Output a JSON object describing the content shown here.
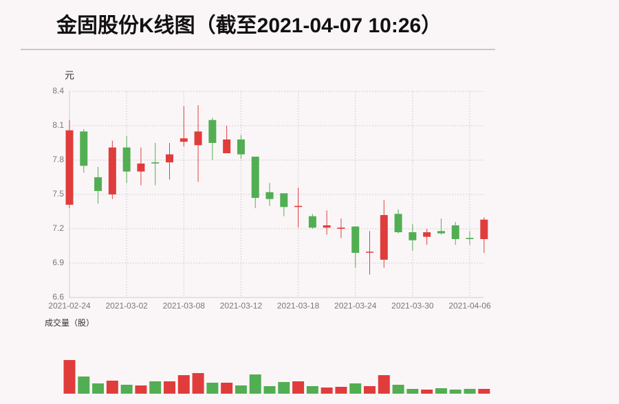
{
  "chart_data": [
    {
      "type": "candlestick",
      "title": "金固股份K线图（截至2021-04-07 10:26）",
      "y_label": "元",
      "categories": [
        "2021-02-24",
        null,
        null,
        null,
        "2021-03-02",
        null,
        null,
        null,
        "2021-03-08",
        null,
        null,
        null,
        "2021-03-12",
        null,
        null,
        null,
        "2021-03-18",
        null,
        null,
        null,
        "2021-03-24",
        null,
        null,
        null,
        "2021-03-30",
        null,
        null,
        null,
        "2021-04-06",
        null
      ],
      "open": [
        7.41,
        8.05,
        7.65,
        7.5,
        7.91,
        7.7,
        7.78,
        7.78,
        7.96,
        7.93,
        8.15,
        7.86,
        7.98,
        7.83,
        7.52,
        7.51,
        7.39,
        7.31,
        7.21,
        7.2,
        7.22,
        7.0,
        6.93,
        7.33,
        7.17,
        7.13,
        7.18,
        7.23,
        7.12,
        7.11
      ],
      "close": [
        8.06,
        7.75,
        7.53,
        7.91,
        7.7,
        7.77,
        7.77,
        7.85,
        7.99,
        8.05,
        7.95,
        7.98,
        7.85,
        7.47,
        7.46,
        7.39,
        7.4,
        7.21,
        7.23,
        7.21,
        6.99,
        7.0,
        7.32,
        7.17,
        7.1,
        7.17,
        7.16,
        7.11,
        7.11,
        7.28
      ],
      "high": [
        8.15,
        8.07,
        7.74,
        7.97,
        8.01,
        7.91,
        7.95,
        7.95,
        8.27,
        8.28,
        8.17,
        8.1,
        8.02,
        7.83,
        7.6,
        7.51,
        7.56,
        7.33,
        7.36,
        7.29,
        7.22,
        7.18,
        7.45,
        7.37,
        7.24,
        7.2,
        7.29,
        7.26,
        7.18,
        7.3
      ],
      "low": [
        7.38,
        7.69,
        7.42,
        7.46,
        7.6,
        7.58,
        7.58,
        7.63,
        7.92,
        7.61,
        7.8,
        7.86,
        7.81,
        7.38,
        7.4,
        7.31,
        7.21,
        7.2,
        7.15,
        7.12,
        6.86,
        6.8,
        6.86,
        7.16,
        7.01,
        7.06,
        7.15,
        7.06,
        7.06,
        6.99
      ],
      "up_color": "#e03c3c",
      "down_color": "#52ae52",
      "ylim": [
        6.6,
        8.4
      ],
      "yticks": [
        6.6,
        6.9,
        7.2,
        7.5,
        7.8,
        8.1,
        8.4
      ],
      "grid": true
    },
    {
      "type": "bar",
      "y_label": "成交量（股）",
      "values": [
        49000000,
        25000000,
        15000000,
        19000000,
        13000000,
        12000000,
        18000000,
        18000000,
        27000000,
        30000000,
        16000000,
        16000000,
        12000000,
        28000000,
        11000000,
        17000000,
        18000000,
        11000000,
        9000000,
        10000000,
        15000000,
        11000000,
        27000000,
        13000000,
        7000000,
        6000000,
        8000000,
        6000000,
        7000000,
        7000000
      ]
    }
  ]
}
